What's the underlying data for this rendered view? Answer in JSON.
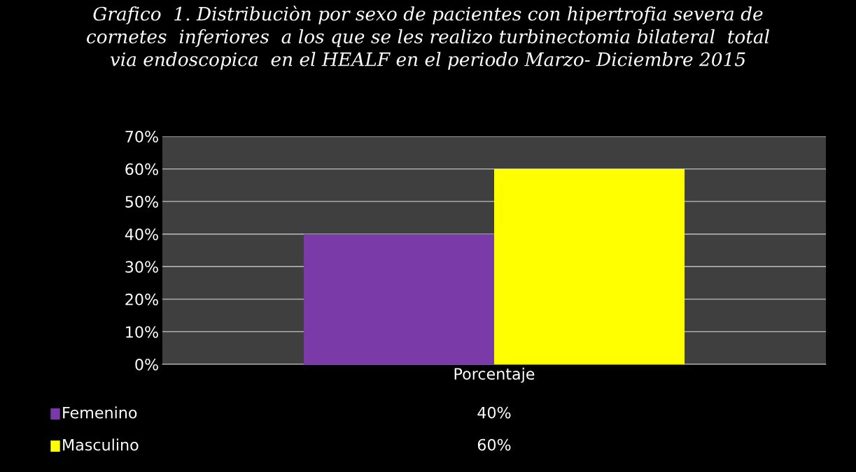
{
  "chart_data": {
    "type": "bar",
    "title": "Grafico  1. Distribuciòn por sexo de pacientes con hipertrofia severa de\ncornetes  inferiores  a los que se les realizo turbinectomia bilateral  total\nvia endoscopica  en el HEALF en el periodo Marzo- Diciembre 2015",
    "categories": [
      "Porcentaje"
    ],
    "series": [
      {
        "name": "Femenino",
        "color": "#7a3aa8",
        "values": [
          40
        ]
      },
      {
        "name": "Masculino",
        "color": "#ffff00",
        "values": [
          60
        ]
      }
    ],
    "value_labels": [
      [
        "40%"
      ],
      [
        "60%"
      ]
    ],
    "ylim": [
      0,
      70
    ],
    "yticks": [
      {
        "value": 0,
        "label": "0%"
      },
      {
        "value": 10,
        "label": "10%"
      },
      {
        "value": 20,
        "label": "20%"
      },
      {
        "value": 30,
        "label": "30%"
      },
      {
        "value": 40,
        "label": "40%"
      },
      {
        "value": 50,
        "label": "50%"
      },
      {
        "value": 60,
        "label": "60%"
      },
      {
        "value": 70,
        "label": "70%"
      }
    ],
    "grid": "y",
    "legend": "bottom"
  }
}
